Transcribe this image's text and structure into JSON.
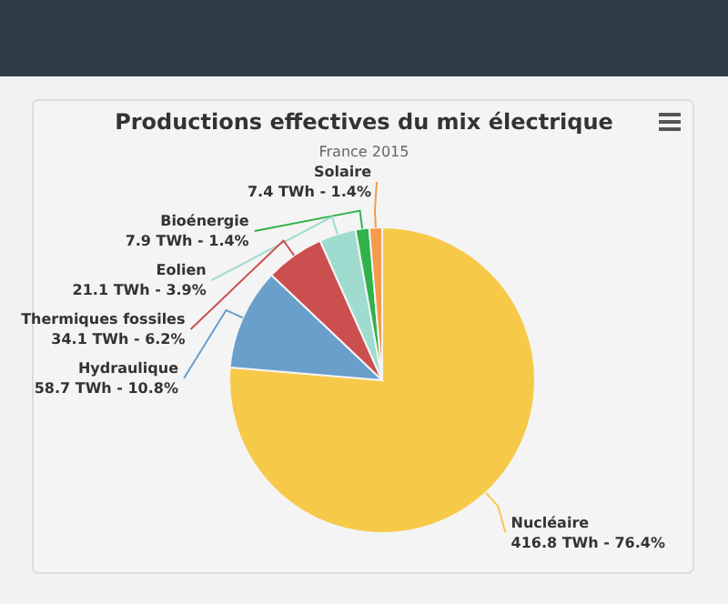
{
  "chart_data": {
    "type": "pie",
    "title": "Productions effectives du mix électrique",
    "subtitle": "France 2015",
    "categories": [
      "Nucléaire",
      "Hydraulique",
      "Thermiques fossiles",
      "Eolien",
      "Bioénergie",
      "Solaire"
    ],
    "values": [
      416.8,
      58.7,
      34.1,
      21.1,
      7.9,
      7.4
    ],
    "value_labels": [
      "416.8 TWh - 76.4%",
      "58.7 TWh - 10.8%",
      "34.1 TWh - 6.2%",
      "21.1 TWh - 3.9%",
      "7.9 TWh - 1.4%",
      "7.4 TWh - 1.4%"
    ],
    "colors": [
      "#f7c948",
      "#6a9ecb",
      "#cc4f4f",
      "#9fdccf",
      "#2fb34a",
      "#f59a4a"
    ]
  }
}
